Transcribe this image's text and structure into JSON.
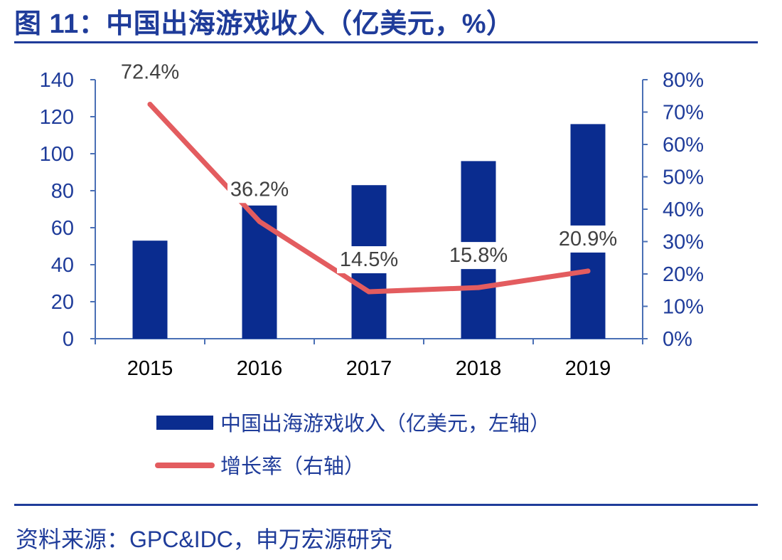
{
  "figure_title": "图 11：中国出海游戏收入（亿美元，%）",
  "source_text": "资料来源：GPC&IDC，申万宏源研究",
  "colors": {
    "bar": "#0a2c8f",
    "line": "#e35c5f",
    "axis": "#4a6fb5",
    "text_blue": "#1f3c9a"
  },
  "chart_data": {
    "type": "bar+line",
    "categories": [
      "2015",
      "2016",
      "2017",
      "2018",
      "2019"
    ],
    "left_axis": {
      "min": 0,
      "max": 140,
      "step": 20,
      "tick_labels": [
        "0",
        "20",
        "40",
        "60",
        "80",
        "100",
        "120",
        "140"
      ]
    },
    "right_axis": {
      "min": 0,
      "max": 0.8,
      "step": 0.1,
      "tick_labels": [
        "0%",
        "10%",
        "20%",
        "30%",
        "40%",
        "50%",
        "60%",
        "70%",
        "80%"
      ]
    },
    "series": [
      {
        "name": "中国出海游戏收入（亿美元，左轴）",
        "type": "bar",
        "axis": "left",
        "values": [
          53,
          72,
          83,
          96,
          116
        ]
      },
      {
        "name": "增长率（右轴）",
        "type": "line",
        "axis": "right",
        "values": [
          0.724,
          0.362,
          0.145,
          0.158,
          0.209
        ],
        "labels": [
          "72.4%",
          "36.2%",
          "14.5%",
          "15.8%",
          "20.9%"
        ]
      }
    ]
  }
}
